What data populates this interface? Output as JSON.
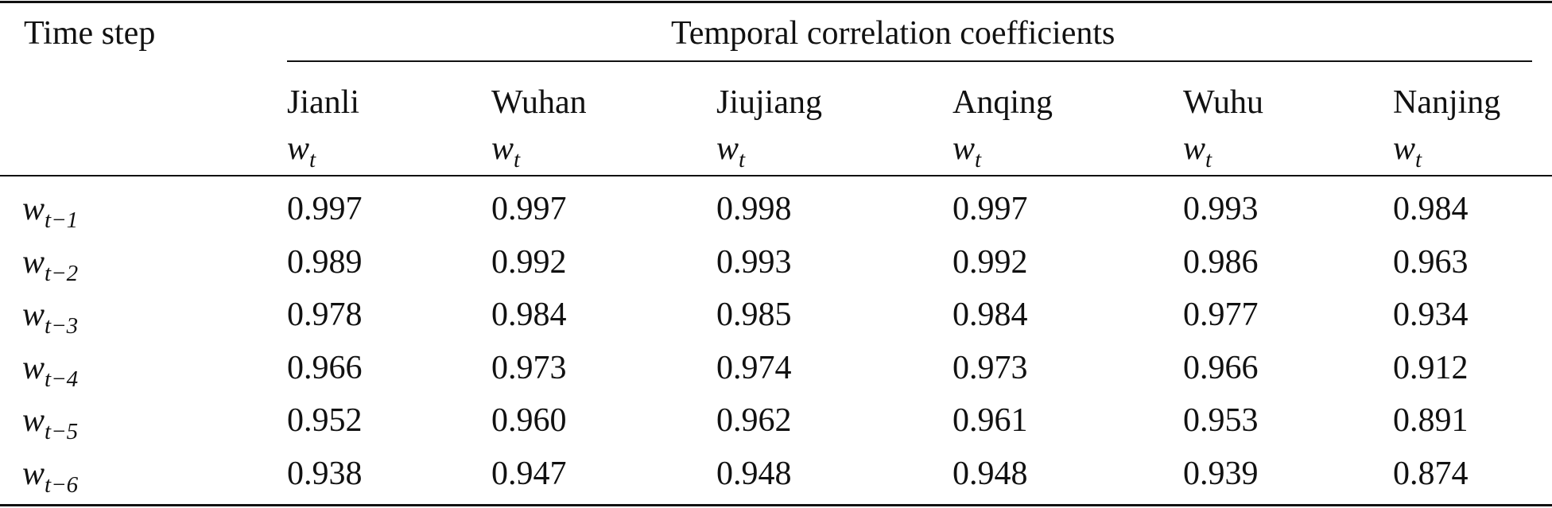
{
  "table": {
    "stub_header": "Time step",
    "spanning_header": "Temporal correlation coefficients",
    "variable_symbol": "w",
    "variable_subscript": "t",
    "stations": [
      "Jianli",
      "Wuhan",
      "Jiujiang",
      "Anqing",
      "Wuhu",
      "Nanjing"
    ],
    "rows": [
      {
        "label_base": "w",
        "label_sub": "t−1",
        "values": [
          "0.997",
          "0.997",
          "0.998",
          "0.997",
          "0.993",
          "0.984"
        ]
      },
      {
        "label_base": "w",
        "label_sub": "t−2",
        "values": [
          "0.989",
          "0.992",
          "0.993",
          "0.992",
          "0.986",
          "0.963"
        ]
      },
      {
        "label_base": "w",
        "label_sub": "t−3",
        "values": [
          "0.978",
          "0.984",
          "0.985",
          "0.984",
          "0.977",
          "0.934"
        ]
      },
      {
        "label_base": "w",
        "label_sub": "t−4",
        "values": [
          "0.966",
          "0.973",
          "0.974",
          "0.973",
          "0.966",
          "0.912"
        ]
      },
      {
        "label_base": "w",
        "label_sub": "t−5",
        "values": [
          "0.952",
          "0.960",
          "0.962",
          "0.961",
          "0.953",
          "0.891"
        ]
      },
      {
        "label_base": "w",
        "label_sub": "t−6",
        "values": [
          "0.938",
          "0.947",
          "0.948",
          "0.948",
          "0.939",
          "0.874"
        ]
      }
    ]
  }
}
